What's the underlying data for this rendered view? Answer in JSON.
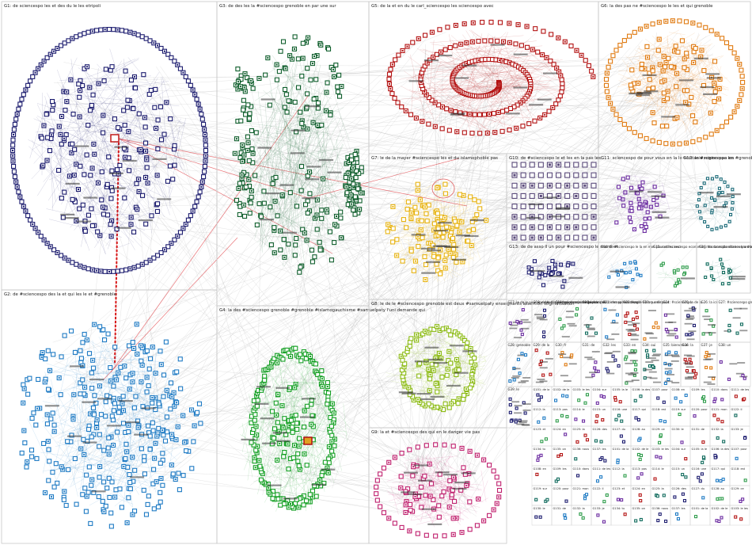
{
  "groups": [
    {
      "id": "G1",
      "title": "G1: de sciencespo les et des du le les etripoli",
      "color": "#1b1b6e",
      "shape": "ring"
    },
    {
      "id": "G2",
      "title": "G2: de #sciencespo des la et qui les le et #grenoble",
      "color": "#1f7bc4",
      "shape": "cloud"
    },
    {
      "id": "G3",
      "title": "G3: de des les la #sciencespo grenoble en par une sur",
      "color": "#0f5e2c",
      "shape": "scatter"
    },
    {
      "id": "G4",
      "title": "G4: la des #sciencespo grenoble #grenoble #islamogauchisme #samuelpaty l'uni demande qui",
      "color": "#16a025",
      "shape": "ellipse"
    },
    {
      "id": "G5",
      "title": "G5: de la et en du le carl_sciencespo les sciencespo avec",
      "color": "#b31212",
      "shape": "spiral"
    },
    {
      "id": "G6",
      "title": "G6: la des pas ne #sciencespo le les et qui grenoble",
      "color": "#e07a10",
      "shape": "ring"
    },
    {
      "id": "G7",
      "title": "G7: le de la mayer #sciencespo les et du islamophobie pas",
      "color": "#e8b412",
      "shape": "cluster"
    },
    {
      "id": "G8",
      "title": "G8: le de le #sciencespo grenoble est deux #samuelpaty enseignants assertion stigmatisation",
      "color": "#8cbb14",
      "shape": "ellipse"
    },
    {
      "id": "G9",
      "title": "G9: la et #sciencespo des qui en le danger vie pas",
      "color": "#c0206e",
      "shape": "ring"
    },
    {
      "id": "G10",
      "title": "G10: de #sciencespo le et les en la pas les",
      "color": "#5a4a7a",
      "shape": "grid"
    },
    {
      "id": "G11",
      "title": "G11: sciencespo de pour vous en la le occitanie region pas les",
      "color": "#6a2aa0",
      "shape": "cluster"
    },
    {
      "id": "G12",
      "title": "G12: le #sciencespo en #grenoble #islamogauchisme belle tous journée mise situation",
      "color": "#1a6a78",
      "shape": "ellipse"
    },
    {
      "id": "G13",
      "title": "G13: de de asso il un pour #sciencespo le merci et",
      "color": "#1b1b6e",
      "shape": "cluster"
    },
    {
      "id": "G14",
      "title": "G14: de #sciencespo le la en mon pour et les ceci",
      "color": "#1f7bc4",
      "shape": "cluster"
    },
    {
      "id": "G15",
      "title": "G15: sacd sciencespo economie_infos transplanétaires knowledge #scilences universitaire rocket",
      "color": "#2d9c4a",
      "shape": "cluster"
    },
    {
      "id": "G16",
      "title": "G16: les sacmabo sciencespo #scilences universitaire rocket la par #grenoble",
      "color": "#0f6a5c",
      "shape": "cluster"
    }
  ],
  "small_groups": [
    "G17: le de le pour une dans la au #sciencespo toujours",
    "G18: de la #sciencespo concours du pour des",
    "G19: sur de sciencespo français",
    "G20: le de la #sciencespo en devant",
    "G21: des pollens crous",
    "G22: fragile library online",
    "G23: sur de pour",
    "G24: #sciencespo",
    "G25: la de la",
    "G26: la ics",
    "G27: #sciencespo grenoble",
    "G28: grenoble",
    "G29: de la",
    "G30: fr",
    "G31: de",
    "G32: les",
    "G33: en",
    "G34: oui",
    "G35: bienvenue",
    "G36: la",
    "G37: je",
    "G38: un",
    "G39: le"
  ],
  "grid_labels": [
    "G101: de la",
    "G102: de le",
    "G103: le les",
    "G104: sur",
    "G105: la le",
    "G106: la des",
    "G107: pour",
    "G108: en",
    "G109: les",
    "G110: dans",
    "G111: de les",
    "G112: la",
    "G113: pas",
    "G114: le",
    "G115: un",
    "G116: une",
    "G117: qui",
    "G118: est",
    "G119: sur",
    "G120: pour",
    "G121: mon",
    "G122: il",
    "G123: et",
    "G124: en",
    "G125: la",
    "G126: des",
    "G127: du",
    "G128: au",
    "G129: ce",
    "G130: le",
    "G131: de",
    "G132: la",
    "G133: je",
    "G134: tu",
    "G135: on",
    "G136: nous",
    "G137: les"
  ]
}
